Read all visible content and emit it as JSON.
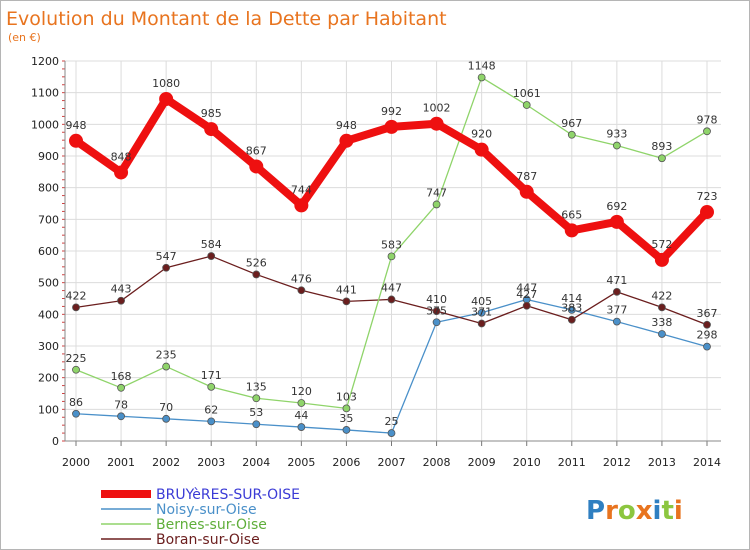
{
  "header": {
    "title": "Evolution du Montant de la Dette par Habitant",
    "subtitle": "(en €)"
  },
  "brand": {
    "letters": [
      "P",
      "r",
      "o",
      "x",
      "i",
      "t",
      "i"
    ],
    "colors": [
      "#2f7fc1",
      "#e8741f",
      "#8cc63f",
      "#e8741f",
      "#2f7fc1",
      "#8cc63f",
      "#e8741f"
    ]
  },
  "chart_data": {
    "type": "line",
    "x": [
      "2000",
      "2001",
      "2002",
      "2003",
      "2004",
      "2005",
      "2006",
      "2007",
      "2008",
      "2009",
      "2010",
      "2011",
      "2012",
      "2013",
      "2014"
    ],
    "ylim": [
      0,
      1200
    ],
    "yticks": [
      0,
      100,
      200,
      300,
      400,
      500,
      600,
      700,
      800,
      900,
      1000,
      1100,
      1200
    ],
    "grid": true,
    "legend": "bottom-left",
    "series": [
      {
        "name": "BRUYèRES-SUR-OISE",
        "color": "#ee1010",
        "legend_color": "#3b3bd6",
        "values": [
          948,
          848,
          1080,
          985,
          867,
          744,
          948,
          992,
          1002,
          920,
          787,
          665,
          692,
          572,
          723
        ]
      },
      {
        "name": "Noisy-sur-Oise",
        "color": "#4a90c9",
        "legend_color": "#4a90c9",
        "values": [
          86,
          78,
          70,
          62,
          53,
          44,
          35,
          25,
          375,
          405,
          447,
          414,
          377,
          338,
          298
        ]
      },
      {
        "name": "Bernes-sur-Oise",
        "color": "#8fd46a",
        "legend_color": "#5fae3a",
        "values": [
          225,
          168,
          235,
          171,
          135,
          120,
          103,
          583,
          747,
          1148,
          1061,
          967,
          933,
          893,
          978
        ]
      },
      {
        "name": "Boran-sur-Oise",
        "color": "#6b1e1e",
        "legend_color": "#6b1e1e",
        "values": [
          422,
          443,
          547,
          584,
          526,
          476,
          441,
          447,
          410,
          371,
          427,
          383,
          471,
          422,
          367
        ]
      }
    ]
  }
}
